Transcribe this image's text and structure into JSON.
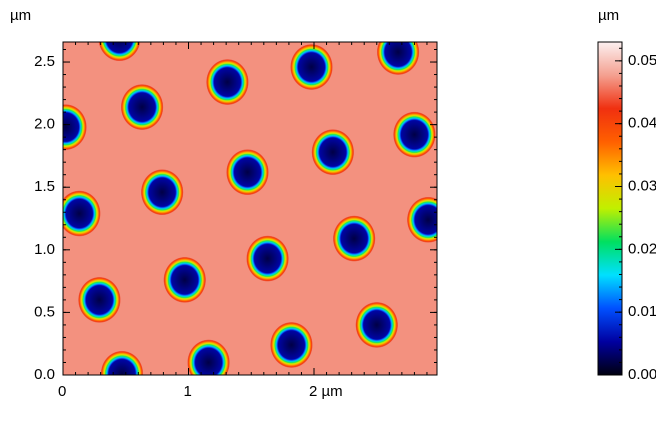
{
  "chart_data": {
    "type": "afm-height-map",
    "y_label": "µm",
    "xlim": [
      0,
      2.98
    ],
    "ylim": [
      0,
      2.66
    ],
    "xticks": [
      0,
      1,
      {
        "value": 2,
        "label": "2 µm"
      }
    ],
    "yticks": [
      {
        "value": 0,
        "label": "0.0"
      },
      0.5,
      {
        "value": 1,
        "label": "1.0"
      },
      1.5,
      {
        "value": 2,
        "label": "2.0"
      },
      2.5
    ],
    "surface_height": 0.047,
    "well_floor_height": 0.002,
    "well_radius": 0.17,
    "wells": [
      {
        "x": 0.45,
        "y": 2.69
      },
      {
        "x": 1.98,
        "y": 2.46
      },
      {
        "x": 2.67,
        "y": 2.58
      },
      {
        "x": 1.31,
        "y": 2.34
      },
      {
        "x": 0.63,
        "y": 2.14
      },
      {
        "x": 0.02,
        "y": 1.98
      },
      {
        "x": 2.8,
        "y": 1.92
      },
      {
        "x": 2.15,
        "y": 1.78
      },
      {
        "x": 1.47,
        "y": 1.62
      },
      {
        "x": 0.79,
        "y": 1.46
      },
      {
        "x": 0.13,
        "y": 1.29
      },
      {
        "x": 2.91,
        "y": 1.24
      },
      {
        "x": 2.32,
        "y": 1.09
      },
      {
        "x": 1.63,
        "y": 0.93
      },
      {
        "x": 0.97,
        "y": 0.76
      },
      {
        "x": 0.29,
        "y": 0.6
      },
      {
        "x": 2.5,
        "y": 0.4
      },
      {
        "x": 1.82,
        "y": 0.24
      },
      {
        "x": 1.16,
        "y": 0.1
      },
      {
        "x": 0.47,
        "y": 0.01
      }
    ],
    "colorbar": {
      "label": "µm",
      "lim": [
        0,
        0.053
      ],
      "ticks": [
        {
          "value": 0,
          "label": "0.00"
        },
        {
          "value": 0.01,
          "label": "0.01"
        },
        {
          "value": 0.02,
          "label": "0.02"
        },
        {
          "value": 0.03,
          "label": "0.03"
        },
        {
          "value": 0.04,
          "label": "0.04"
        },
        {
          "value": 0.05,
          "label": "0.05"
        }
      ]
    },
    "colormap": [
      "#000010",
      "#0000a0",
      "#0050ff",
      "#00e0ff",
      "#00e060",
      "#c0f000",
      "#ffc000",
      "#ff6000",
      "#f03010",
      "#f4a090",
      "#fcf0f0"
    ]
  }
}
